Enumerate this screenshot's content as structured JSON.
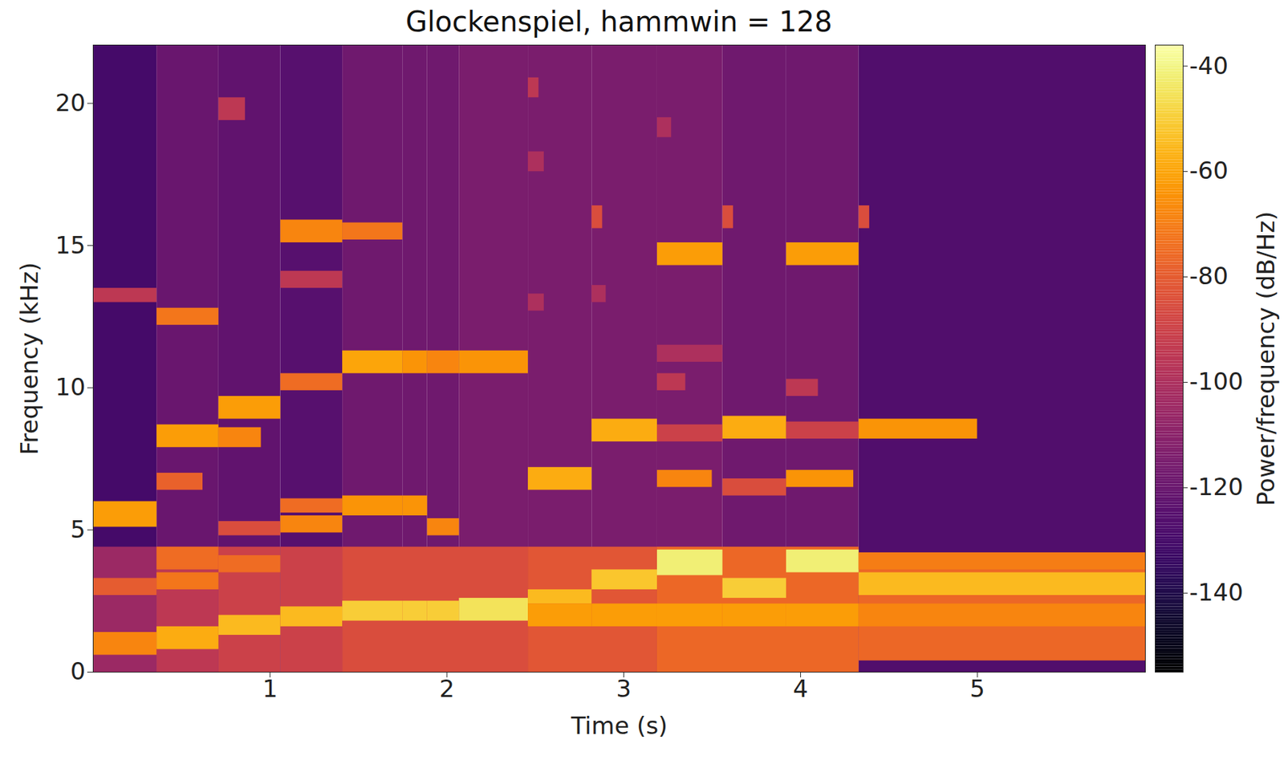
{
  "chart_data": {
    "type": "heatmap",
    "title": "Glockenspiel, hammwin = 128",
    "x_label": "Time (s)",
    "y_label": "Frequency (kHz)",
    "xlim": [
      0,
      5.95
    ],
    "xticks": [
      1,
      2,
      3,
      4,
      5
    ],
    "ylim": [
      0,
      22.05
    ],
    "yticks": [
      0,
      5,
      10,
      15,
      20
    ],
    "color": "inferno",
    "colorbar": {
      "label": "Power/frequency (dB/Hz)",
      "range": [
        -155,
        -36
      ],
      "ticks": [
        -140,
        -120,
        -100,
        -80,
        -60,
        -40
      ]
    },
    "cells": [
      {
        "x1": 0,
        "x2": 0.36,
        "y1": 0,
        "y2": 22.05,
        "value": -130
      },
      {
        "x1": 0.36,
        "x2": 0.71,
        "y1": 0,
        "y2": 22.05,
        "value": -120
      },
      {
        "x1": 0.71,
        "x2": 1.06,
        "y1": 0,
        "y2": 22.05,
        "value": -122
      },
      {
        "x1": 1.06,
        "x2": 1.41,
        "y1": 0,
        "y2": 22.05,
        "value": -125
      },
      {
        "x1": 1.41,
        "x2": 1.75,
        "y1": 0,
        "y2": 22.05,
        "value": -118
      },
      {
        "x1": 1.75,
        "x2": 1.89,
        "y1": 0,
        "y2": 22.05,
        "value": -118
      },
      {
        "x1": 1.89,
        "x2": 2.07,
        "y1": 0,
        "y2": 22.05,
        "value": -118
      },
      {
        "x1": 2.07,
        "x2": 2.46,
        "y1": 0,
        "y2": 22.05,
        "value": -115
      },
      {
        "x1": 2.46,
        "x2": 2.82,
        "y1": 0,
        "y2": 22.05,
        "value": -115
      },
      {
        "x1": 2.82,
        "x2": 3.19,
        "y1": 0,
        "y2": 22.05,
        "value": -115
      },
      {
        "x1": 3.19,
        "x2": 3.56,
        "y1": 0,
        "y2": 22.05,
        "value": -115
      },
      {
        "x1": 3.56,
        "x2": 3.92,
        "y1": 0,
        "y2": 22.05,
        "value": -118
      },
      {
        "x1": 3.92,
        "x2": 4.33,
        "y1": 0,
        "y2": 22.05,
        "value": -118
      },
      {
        "x1": 4.33,
        "x2": 5.95,
        "y1": 0,
        "y2": 22.05,
        "value": -127
      },
      {
        "x1": 0,
        "x2": 0.36,
        "y1": 0,
        "y2": 4.4,
        "value": -105
      },
      {
        "x1": 0.36,
        "x2": 0.71,
        "y1": 0,
        "y2": 4.4,
        "value": -95
      },
      {
        "x1": 0.71,
        "x2": 1.06,
        "y1": 0,
        "y2": 4.4,
        "value": -90
      },
      {
        "x1": 1.06,
        "x2": 1.41,
        "y1": 0,
        "y2": 4.4,
        "value": -90
      },
      {
        "x1": 1.41,
        "x2": 2.46,
        "y1": 0,
        "y2": 4.4,
        "value": -85
      },
      {
        "x1": 2.46,
        "x2": 3.19,
        "y1": 0,
        "y2": 4.4,
        "value": -82
      },
      {
        "x1": 3.19,
        "x2": 4.33,
        "y1": 0,
        "y2": 4.4,
        "value": -76
      },
      {
        "x1": 4.33,
        "x2": 5.95,
        "y1": 0.4,
        "y2": 4.2,
        "value": -76
      },
      {
        "x1": 0,
        "x2": 0.36,
        "y1": 13.0,
        "y2": 13.5,
        "value": -95
      },
      {
        "x1": 0,
        "x2": 0.36,
        "y1": 5.1,
        "y2": 6.0,
        "value": -62
      },
      {
        "x1": 0,
        "x2": 0.36,
        "y1": 2.7,
        "y2": 3.3,
        "value": -80
      },
      {
        "x1": 0,
        "x2": 0.36,
        "y1": 0.6,
        "y2": 1.4,
        "value": -68
      },
      {
        "x1": 0.36,
        "x2": 0.71,
        "y1": 12.2,
        "y2": 12.8,
        "value": -72
      },
      {
        "x1": 0.36,
        "x2": 0.71,
        "y1": 7.9,
        "y2": 8.7,
        "value": -62
      },
      {
        "x1": 0.36,
        "x2": 0.62,
        "y1": 6.4,
        "y2": 7.0,
        "value": -78
      },
      {
        "x1": 0.36,
        "x2": 0.71,
        "y1": 3.6,
        "y2": 4.4,
        "value": -75
      },
      {
        "x1": 0.36,
        "x2": 0.71,
        "y1": 2.9,
        "y2": 3.5,
        "value": -72
      },
      {
        "x1": 0.36,
        "x2": 0.71,
        "y1": 0.8,
        "y2": 1.6,
        "value": -58
      },
      {
        "x1": 0.71,
        "x2": 0.86,
        "y1": 19.4,
        "y2": 20.2,
        "value": -95
      },
      {
        "x1": 0.71,
        "x2": 1.06,
        "y1": 8.9,
        "y2": 9.7,
        "value": -62
      },
      {
        "x1": 0.71,
        "x2": 0.95,
        "y1": 7.9,
        "y2": 8.6,
        "value": -68
      },
      {
        "x1": 0.71,
        "x2": 1.06,
        "y1": 4.8,
        "y2": 5.3,
        "value": -85
      },
      {
        "x1": 0.71,
        "x2": 1.06,
        "y1": 3.5,
        "y2": 4.1,
        "value": -75
      },
      {
        "x1": 0.71,
        "x2": 1.06,
        "y1": 1.3,
        "y2": 2.0,
        "value": -55
      },
      {
        "x1": 1.06,
        "x2": 1.41,
        "y1": 15.1,
        "y2": 15.9,
        "value": -68
      },
      {
        "x1": 1.06,
        "x2": 1.41,
        "y1": 13.5,
        "y2": 14.1,
        "value": -95
      },
      {
        "x1": 1.06,
        "x2": 1.41,
        "y1": 9.9,
        "y2": 10.5,
        "value": -75
      },
      {
        "x1": 1.06,
        "x2": 1.41,
        "y1": 5.6,
        "y2": 6.1,
        "value": -75
      },
      {
        "x1": 1.06,
        "x2": 1.41,
        "y1": 4.9,
        "y2": 5.5,
        "value": -68
      },
      {
        "x1": 1.06,
        "x2": 1.41,
        "y1": 1.6,
        "y2": 2.3,
        "value": -55
      },
      {
        "x1": 1.41,
        "x2": 1.75,
        "y1": 15.2,
        "y2": 15.8,
        "value": -72
      },
      {
        "x1": 1.41,
        "x2": 1.75,
        "y1": 10.5,
        "y2": 11.3,
        "value": -60
      },
      {
        "x1": 1.41,
        "x2": 1.75,
        "y1": 5.5,
        "y2": 6.2,
        "value": -64
      },
      {
        "x1": 1.41,
        "x2": 1.75,
        "y1": 1.8,
        "y2": 2.5,
        "value": -50
      },
      {
        "x1": 1.75,
        "x2": 1.89,
        "y1": 10.5,
        "y2": 11.3,
        "value": -64
      },
      {
        "x1": 1.75,
        "x2": 1.89,
        "y1": 5.5,
        "y2": 6.2,
        "value": -64
      },
      {
        "x1": 1.75,
        "x2": 1.89,
        "y1": 1.8,
        "y2": 2.5,
        "value": -50
      },
      {
        "x1": 1.89,
        "x2": 2.07,
        "y1": 10.5,
        "y2": 11.3,
        "value": -68
      },
      {
        "x1": 1.89,
        "x2": 2.07,
        "y1": 4.8,
        "y2": 5.4,
        "value": -68
      },
      {
        "x1": 1.89,
        "x2": 2.07,
        "y1": 1.8,
        "y2": 2.5,
        "value": -50
      },
      {
        "x1": 2.07,
        "x2": 2.46,
        "y1": 10.5,
        "y2": 11.3,
        "value": -64
      },
      {
        "x1": 2.07,
        "x2": 2.46,
        "y1": 1.8,
        "y2": 2.6,
        "value": -45
      },
      {
        "x1": 2.46,
        "x2": 2.52,
        "y1": 20.2,
        "y2": 20.9,
        "value": -95
      },
      {
        "x1": 2.46,
        "x2": 2.55,
        "y1": 17.6,
        "y2": 18.3,
        "value": -100
      },
      {
        "x1": 2.46,
        "x2": 2.55,
        "y1": 12.7,
        "y2": 13.3,
        "value": -100
      },
      {
        "x1": 2.46,
        "x2": 2.82,
        "y1": 6.4,
        "y2": 7.2,
        "value": -58
      },
      {
        "x1": 2.46,
        "x2": 2.82,
        "y1": 2.4,
        "y2": 2.9,
        "value": -55
      },
      {
        "x1": 2.46,
        "x2": 2.82,
        "y1": 1.6,
        "y2": 2.4,
        "value": -62
      },
      {
        "x1": 2.82,
        "x2": 2.88,
        "y1": 15.6,
        "y2": 16.4,
        "value": -85
      },
      {
        "x1": 2.82,
        "x2": 2.9,
        "y1": 13.0,
        "y2": 13.6,
        "value": -100
      },
      {
        "x1": 2.82,
        "x2": 3.19,
        "y1": 8.1,
        "y2": 8.9,
        "value": -58
      },
      {
        "x1": 2.82,
        "x2": 3.19,
        "y1": 2.9,
        "y2": 3.6,
        "value": -52
      },
      {
        "x1": 2.82,
        "x2": 3.19,
        "y1": 1.6,
        "y2": 2.4,
        "value": -62
      },
      {
        "x1": 3.19,
        "x2": 3.27,
        "y1": 18.8,
        "y2": 19.5,
        "value": -100
      },
      {
        "x1": 3.19,
        "x2": 3.56,
        "y1": 14.3,
        "y2": 15.1,
        "value": -62
      },
      {
        "x1": 3.19,
        "x2": 3.56,
        "y1": 10.9,
        "y2": 11.5,
        "value": -100
      },
      {
        "x1": 3.19,
        "x2": 3.35,
        "y1": 9.9,
        "y2": 10.5,
        "value": -95
      },
      {
        "x1": 3.19,
        "x2": 3.56,
        "y1": 8.1,
        "y2": 8.7,
        "value": -90
      },
      {
        "x1": 3.19,
        "x2": 3.5,
        "y1": 6.5,
        "y2": 7.1,
        "value": -68
      },
      {
        "x1": 3.19,
        "x2": 3.56,
        "y1": 3.4,
        "y2": 4.3,
        "value": -42
      },
      {
        "x1": 3.19,
        "x2": 3.56,
        "y1": 1.6,
        "y2": 2.4,
        "value": -62
      },
      {
        "x1": 3.56,
        "x2": 3.62,
        "y1": 15.6,
        "y2": 16.4,
        "value": -85
      },
      {
        "x1": 3.56,
        "x2": 3.92,
        "y1": 8.2,
        "y2": 9.0,
        "value": -58
      },
      {
        "x1": 3.56,
        "x2": 3.92,
        "y1": 6.2,
        "y2": 6.8,
        "value": -85
      },
      {
        "x1": 3.56,
        "x2": 3.92,
        "y1": 2.6,
        "y2": 3.3,
        "value": -50
      },
      {
        "x1": 3.56,
        "x2": 3.92,
        "y1": 1.6,
        "y2": 2.4,
        "value": -62
      },
      {
        "x1": 3.92,
        "x2": 4.33,
        "y1": 14.3,
        "y2": 15.1,
        "value": -62
      },
      {
        "x1": 3.92,
        "x2": 4.1,
        "y1": 9.7,
        "y2": 10.3,
        "value": -95
      },
      {
        "x1": 3.92,
        "x2": 4.33,
        "y1": 8.2,
        "y2": 8.8,
        "value": -90
      },
      {
        "x1": 3.92,
        "x2": 4.3,
        "y1": 6.5,
        "y2": 7.1,
        "value": -64
      },
      {
        "x1": 3.92,
        "x2": 4.33,
        "y1": 3.5,
        "y2": 4.3,
        "value": -42
      },
      {
        "x1": 3.92,
        "x2": 4.33,
        "y1": 1.6,
        "y2": 2.4,
        "value": -62
      },
      {
        "x1": 4.33,
        "x2": 4.39,
        "y1": 15.6,
        "y2": 16.4,
        "value": -85
      },
      {
        "x1": 4.33,
        "x2": 5.0,
        "y1": 8.2,
        "y2": 8.9,
        "value": -64
      },
      {
        "x1": 4.33,
        "x2": 5.95,
        "y1": 3.6,
        "y2": 4.2,
        "value": -70
      },
      {
        "x1": 4.33,
        "x2": 5.95,
        "y1": 2.7,
        "y2": 3.5,
        "value": -55
      },
      {
        "x1": 4.33,
        "x2": 5.95,
        "y1": 1.6,
        "y2": 2.4,
        "value": -68
      }
    ]
  }
}
